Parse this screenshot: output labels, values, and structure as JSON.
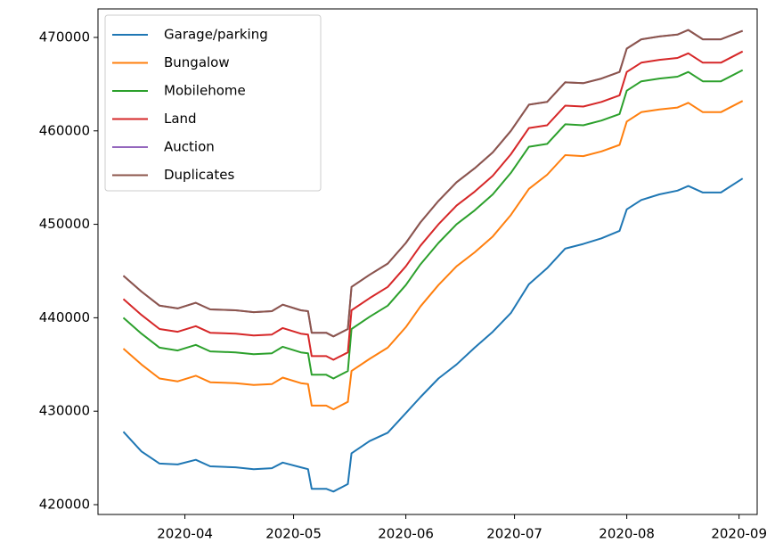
{
  "chart_data": {
    "type": "line",
    "x": [
      "2020-03-15",
      "2020-03-20",
      "2020-03-25",
      "2020-03-30",
      "2020-04-04",
      "2020-04-08",
      "2020-04-15",
      "2020-04-20",
      "2020-04-25",
      "2020-04-28",
      "2020-05-03",
      "2020-05-05",
      "2020-05-06",
      "2020-05-10",
      "2020-05-12",
      "2020-05-16",
      "2020-05-17",
      "2020-05-22",
      "2020-05-27",
      "2020-06-01",
      "2020-06-05",
      "2020-06-10",
      "2020-06-15",
      "2020-06-20",
      "2020-06-25",
      "2020-06-30",
      "2020-07-05",
      "2020-07-10",
      "2020-07-15",
      "2020-07-20",
      "2020-07-25",
      "2020-07-30",
      "2020-08-01",
      "2020-08-05",
      "2020-08-10",
      "2020-08-15",
      "2020-08-18",
      "2020-08-22",
      "2020-08-27",
      "2020-09-02"
    ],
    "series": [
      {
        "name": "Garage/parking",
        "color": "#1f77b4",
        "values": [
          427800,
          425700,
          424400,
          424300,
          424800,
          424100,
          424000,
          423800,
          423900,
          424500,
          424000,
          423800,
          421700,
          421700,
          421400,
          422200,
          425500,
          426800,
          427700,
          429800,
          431500,
          433500,
          435000,
          436800,
          438500,
          440500,
          443600,
          445300,
          447400,
          447900,
          448500,
          449300,
          451600,
          452600,
          453200,
          453600,
          454100,
          453400,
          453400,
          454900
        ]
      },
      {
        "name": "Bungalow",
        "color": "#ff7f0e",
        "values": [
          436700,
          435000,
          433500,
          433200,
          433800,
          433100,
          433000,
          432800,
          432900,
          433600,
          433000,
          432900,
          430600,
          430600,
          430200,
          431000,
          434300,
          435600,
          436800,
          439000,
          441200,
          443500,
          445500,
          447000,
          448700,
          451000,
          453800,
          455300,
          457400,
          457300,
          457800,
          458500,
          461000,
          462000,
          462300,
          462500,
          463000,
          462000,
          462000,
          463200
        ]
      },
      {
        "name": "Mobilehome",
        "color": "#2ca02c",
        "values": [
          440000,
          438300,
          436800,
          436500,
          437100,
          436400,
          436300,
          436100,
          436200,
          436900,
          436300,
          436200,
          433900,
          433900,
          433500,
          434300,
          438800,
          440100,
          441300,
          443500,
          445700,
          448000,
          450000,
          451500,
          453200,
          455500,
          458300,
          458600,
          460700,
          460600,
          461100,
          461800,
          464300,
          465300,
          465600,
          465800,
          466300,
          465300,
          465300,
          466500
        ]
      },
      {
        "name": "Land",
        "color": "#d62728",
        "values": [
          442000,
          440300,
          438800,
          438500,
          439100,
          438400,
          438300,
          438100,
          438200,
          438900,
          438300,
          438200,
          435900,
          435900,
          435500,
          436300,
          440800,
          442100,
          443300,
          445500,
          447700,
          450000,
          452000,
          453500,
          455200,
          457500,
          460300,
          460600,
          462700,
          462600,
          463100,
          463800,
          466300,
          467300,
          467600,
          467800,
          468300,
          467300,
          467300,
          468500
        ]
      },
      {
        "name": "Auction",
        "color": "#9467bd",
        "values": [
          444500,
          442800,
          441300,
          441000,
          441600,
          440900,
          440800,
          440600,
          440700,
          441400,
          440800,
          440700,
          438400,
          438400,
          438000,
          438800,
          443300,
          444600,
          445800,
          448000,
          450200,
          452500,
          454500,
          456000,
          457700,
          460000,
          462800,
          463100,
          465200,
          465100,
          465600,
          466300,
          468800,
          469800,
          470100,
          470300,
          470800,
          469800,
          469800,
          470700
        ]
      },
      {
        "name": "Duplicates",
        "color": "#8c564b",
        "values": [
          444500,
          442800,
          441300,
          441000,
          441600,
          440900,
          440800,
          440600,
          440700,
          441400,
          440800,
          440700,
          438400,
          438400,
          438000,
          438800,
          443300,
          444600,
          445800,
          448000,
          450200,
          452500,
          454500,
          456000,
          457700,
          460000,
          462800,
          463100,
          465200,
          465100,
          465600,
          466300,
          468800,
          469800,
          470100,
          470300,
          470800,
          469800,
          469800,
          470700
        ]
      }
    ],
    "xlim": [
      "2020-03-08",
      "2020-09-06"
    ],
    "xticks": [
      {
        "value": "2020-04-01",
        "label": "2020-04"
      },
      {
        "value": "2020-05-01",
        "label": "2020-05"
      },
      {
        "value": "2020-06-01",
        "label": "2020-06"
      },
      {
        "value": "2020-07-01",
        "label": "2020-07"
      },
      {
        "value": "2020-08-01",
        "label": "2020-08"
      },
      {
        "value": "2020-09-01",
        "label": "2020-09"
      }
    ],
    "ylim": [
      418950,
      473050
    ],
    "yticks": [
      420000,
      430000,
      440000,
      450000,
      460000,
      470000
    ],
    "grid": false,
    "legend": "upper left"
  }
}
